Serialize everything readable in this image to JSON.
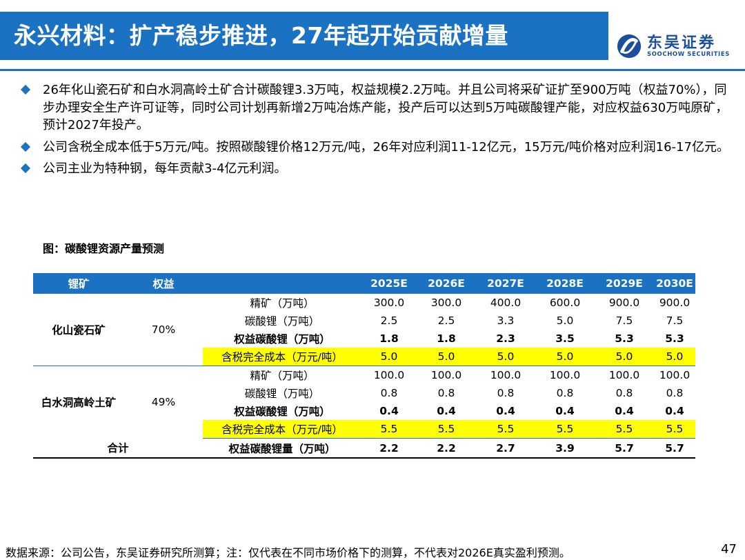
{
  "header": {
    "title": "永兴材料：扩产稳步推进，27年起开始贡献增量",
    "logo_cn": "东吴证券",
    "logo_en": "SOOCHOW SECURITIES",
    "accent_color": "#1b72c3"
  },
  "bullets": [
    "26年化山瓷石矿和白水洞高岭土矿合计碳酸锂3.3万吨，权益规模2.2万吨。并且公司将采矿证扩至900万吨（权益70%），同步办理安全生产许可证等，同时公司计划再新增2万吨冶炼产能，投产后可以达到5万吨碳酸锂产能，对应权益630万吨原矿，预计2027年投产。",
    "公司含税全成本低于5万元/吨。按照碳酸锂价格12万元/吨，26年对应利润11-12亿元，15万元/吨价格对应利润16-17亿元。",
    "公司主业为特种钢，每年贡献3-4亿元利润。"
  ],
  "figure_caption": "图：碳酸锂资源产量预测",
  "table": {
    "headers": [
      "锂矿",
      "权益",
      "",
      "2025E",
      "2026E",
      "2027E",
      "2028E",
      "2029E",
      "2030E"
    ],
    "groups": [
      {
        "mine": "化山瓷石矿",
        "equity": "70%",
        "rows": [
          {
            "metric": "精矿（万吨）",
            "values": [
              "300.0",
              "300.0",
              "400.0",
              "600.0",
              "900.0",
              "900.0"
            ]
          },
          {
            "metric": "碳酸锂（万吨）",
            "values": [
              "2.5",
              "2.5",
              "3.3",
              "5.0",
              "7.5",
              "7.5"
            ]
          },
          {
            "metric": "权益碳酸锂（万吨）",
            "values": [
              "1.8",
              "1.8",
              "2.3",
              "3.5",
              "5.3",
              "5.3"
            ]
          },
          {
            "metric": "含税完全成本（万元/吨）",
            "values": [
              "5.0",
              "5.0",
              "5.0",
              "5.0",
              "5.0",
              "5.0"
            ]
          }
        ]
      },
      {
        "mine": "白水洞高岭土矿",
        "equity": "49%",
        "rows": [
          {
            "metric": "精矿（万吨）",
            "values": [
              "100.0",
              "100.0",
              "100.0",
              "100.0",
              "100.0",
              "100.0"
            ]
          },
          {
            "metric": "碳酸锂（万吨）",
            "values": [
              "0.8",
              "0.8",
              "0.8",
              "0.8",
              "0.8",
              "0.8"
            ]
          },
          {
            "metric": "权益碳酸锂（万吨）",
            "values": [
              "0.4",
              "0.4",
              "0.4",
              "0.4",
              "0.4",
              "0.4"
            ]
          },
          {
            "metric": "含税完全成本（万元/吨）",
            "values": [
              "5.5",
              "5.5",
              "5.5",
              "5.5",
              "5.5",
              "5.5"
            ]
          }
        ]
      }
    ],
    "total": {
      "label": "合计",
      "metric": "权益碳酸锂量（万吨）",
      "values": [
        "2.2",
        "2.2",
        "2.7",
        "3.9",
        "5.7",
        "5.7"
      ]
    },
    "highlight_color": "#ffff00"
  },
  "footnote": "数据来源：公司公告，东吴证券研究所测算；注：仅代表在不同市场价格下的测算，不代表对2026E真实盈利预测。",
  "page_number": "47"
}
